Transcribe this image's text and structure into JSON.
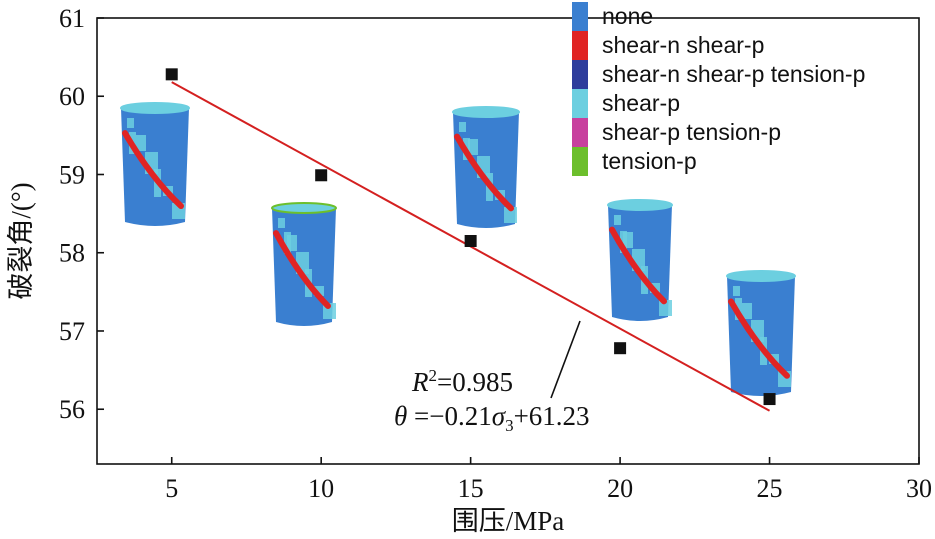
{
  "chart_data": {
    "type": "scatter",
    "xlabel": "围压/MPa",
    "ylabel": "破裂角/(°)",
    "xlim": [
      2.5,
      30
    ],
    "ylim": [
      55.3,
      61
    ],
    "xticks": [
      5,
      10,
      15,
      20,
      25,
      30
    ],
    "yticks": [
      56,
      57,
      58,
      59,
      60,
      61
    ],
    "grid": false,
    "series": [
      {
        "marker": "square",
        "color": "#111111",
        "x": [
          5,
          10,
          15,
          20,
          25
        ],
        "y": [
          60.28,
          58.99,
          58.15,
          56.78,
          56.13
        ]
      }
    ],
    "fit_line": {
      "color": "#d42020",
      "slope": -0.21,
      "intercept": 61.23,
      "x_range": [
        5,
        25
      ]
    },
    "annotation": {
      "r2_symbol": "R",
      "r2_sup": "2",
      "r2_value": "=0.985",
      "eq_lhs": "θ",
      "eq_mid": " =−0.21",
      "eq_sigma": "σ",
      "eq_sub": "3",
      "eq_rhs": "+61.23"
    },
    "legend": {
      "placement": "top-right",
      "entries": [
        {
          "label": "none",
          "color": "#3a7fd0"
        },
        {
          "label": "shear-n shear-p",
          "color": "#e02424"
        },
        {
          "label": "shear-n shear-p tension-p",
          "color": "#2e3d9c"
        },
        {
          "label": "shear-p",
          "color": "#6ccfe0"
        },
        {
          "label": "shear-p tension-p",
          "color": "#c8409e"
        },
        {
          "label": "tension-p",
          "color": "#6cbf2c"
        }
      ]
    },
    "specimens": [
      {
        "at_x": 5
      },
      {
        "at_x": 10
      },
      {
        "at_x": 15
      },
      {
        "at_x": 20
      },
      {
        "at_x": 25
      }
    ]
  }
}
